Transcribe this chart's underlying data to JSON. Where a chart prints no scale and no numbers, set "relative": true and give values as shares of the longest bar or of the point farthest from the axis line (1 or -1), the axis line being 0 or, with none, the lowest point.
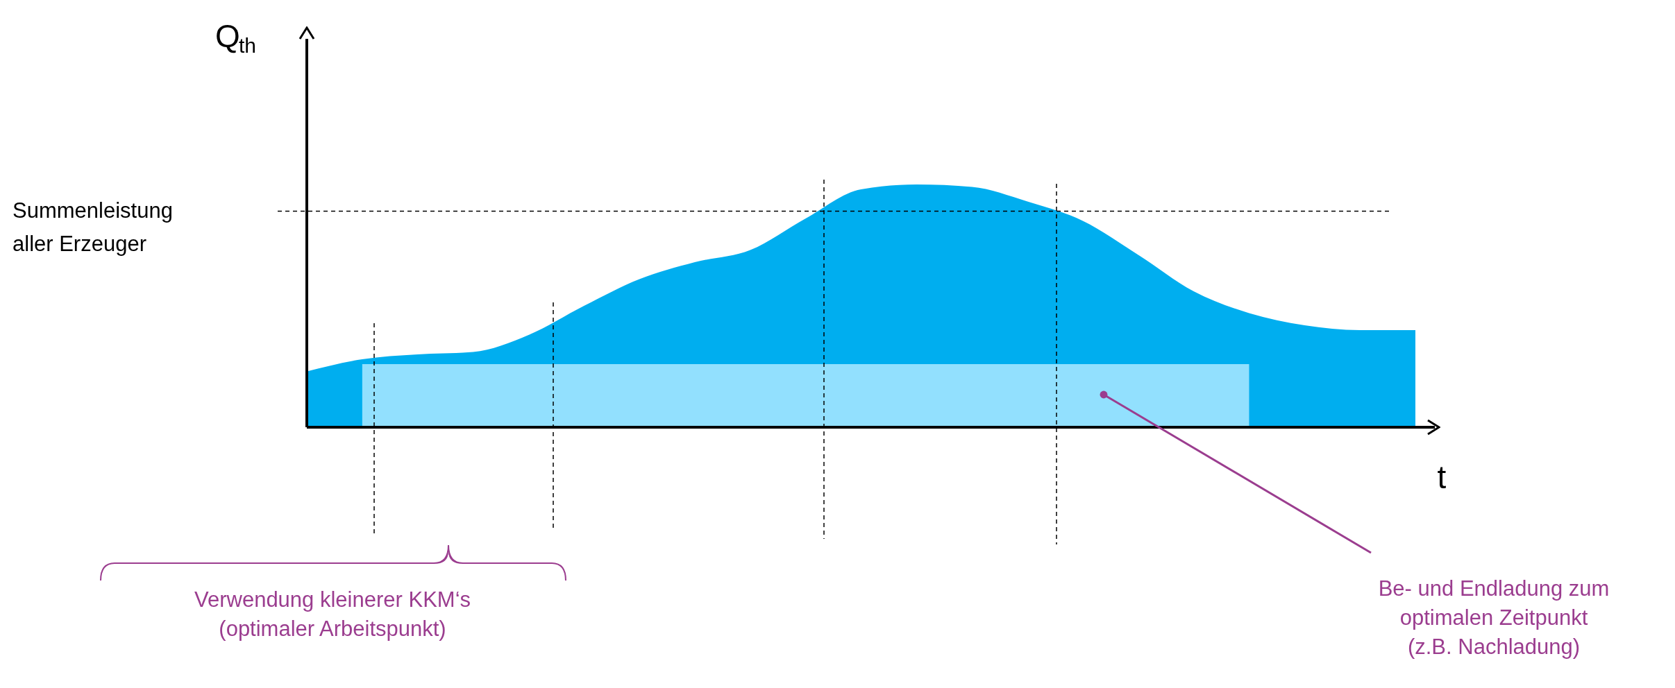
{
  "chart_data": {
    "type": "area",
    "relative": true,
    "ylabel": "Q$_{th}$",
    "xlabel": "t",
    "categories": [
      null,
      null,
      null,
      null,
      null,
      null,
      null,
      null,
      null,
      null,
      null,
      null,
      null,
      null,
      null,
      null,
      null,
      null,
      null,
      null,
      null
    ],
    "series": [
      {
        "color": "#00aeef",
        "values": [
          0.23,
          0.28,
          0.3,
          0.31,
          0.38,
          0.5,
          0.61,
          0.68,
          0.73,
          0.86,
          0.98,
          1.0,
          0.99,
          0.93,
          0.85,
          0.71,
          0.56,
          0.47,
          0.42,
          0.4,
          0.4
        ]
      },
      {
        "color": "#92e0fe",
        "values": [
          null,
          0.26,
          0.26,
          0.26,
          0.26,
          0.26,
          0.26,
          0.26,
          0.26,
          0.26,
          0.26,
          0.26,
          0.26,
          0.26,
          0.26,
          0.26,
          0.26,
          0.26,
          null,
          null,
          null
        ]
      }
    ],
    "ref_lines": [
      {
        "axis": "y",
        "value": 0.89,
        "label": "Summenleistung aller Erzeuger",
        "line_style": "dashed"
      }
    ],
    "annotations": [
      "Verwendung kleinerer KKM‘s (optimaler Arbeitspunkt)",
      "Be- und Endladung zum optimalen Zeitpunkt (z.B. Nachladung)"
    ]
  }
}
